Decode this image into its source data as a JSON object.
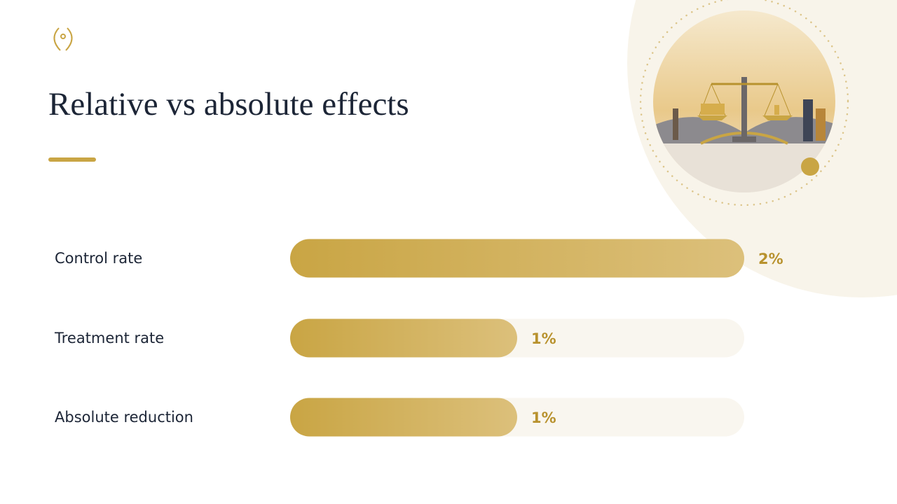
{
  "chart_data": {
    "type": "bar",
    "orientation": "horizontal",
    "title": "Relative vs absolute effects",
    "categories": [
      "Control rate",
      "Treatment rate",
      "Absolute reduction"
    ],
    "values": [
      2,
      1,
      1
    ],
    "value_labels": [
      "2%",
      "1%",
      "1%"
    ],
    "color": "#c9a544",
    "xlim": [
      0,
      2
    ]
  }
}
